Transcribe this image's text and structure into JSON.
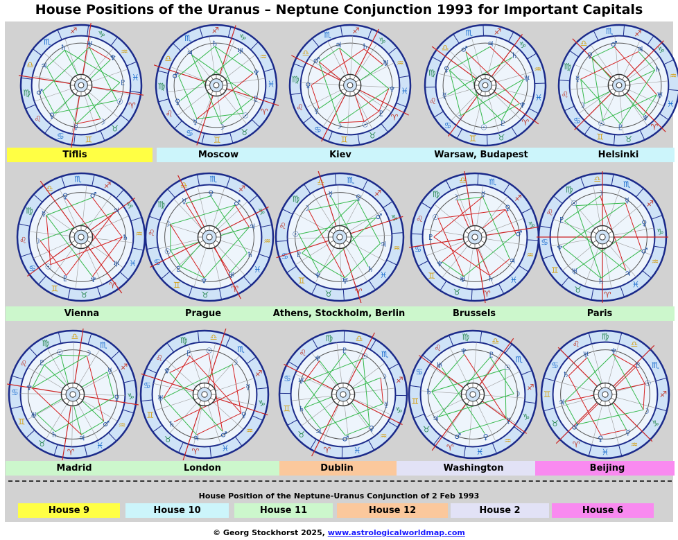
{
  "title": "House Positions of the Uranus – Neptune Conjunction 1993 for Important Capitals",
  "colors": {
    "house9": "#ffff44",
    "house10": "#ccf5fb",
    "house11": "#ccf7cc",
    "house12": "#fbc89c",
    "house2": "#e2e2f6",
    "house6": "#f98af0"
  },
  "rows": [
    {
      "labels": [
        {
          "text": "Tiflis",
          "color": "house9"
        },
        {
          "text": "Moscow",
          "color": "house10"
        },
        {
          "text": "Kiev",
          "color": "house10"
        },
        {
          "text": "Warsaw, Budapest",
          "color": "house10"
        },
        {
          "text": "Helsinki",
          "color": "house10"
        }
      ]
    },
    {
      "labels": [
        {
          "text": "Vienna",
          "color": "house11"
        },
        {
          "text": "Prague",
          "color": "house11"
        },
        {
          "text": "Athens, Stockholm, Berlin",
          "color": "house11"
        },
        {
          "text": "Brussels",
          "color": "house11"
        },
        {
          "text": "Paris",
          "color": "house11"
        }
      ]
    },
    {
      "labels": [
        {
          "text": "Madrid",
          "color": "house11"
        },
        {
          "text": "London",
          "color": "house11"
        },
        {
          "text": "Dublin",
          "color": "house12"
        },
        {
          "text": "Washington",
          "color": "house2"
        },
        {
          "text": "Beijing",
          "color": "house6"
        }
      ]
    }
  ],
  "legend": {
    "title": "House Position of the Neptune-Uranus Conjunction of 2 Feb 1993",
    "items": [
      {
        "text": "House 9",
        "color": "house9"
      },
      {
        "text": "House 10",
        "color": "house10"
      },
      {
        "text": "House 11",
        "color": "house11"
      },
      {
        "text": "House 12",
        "color": "house12"
      },
      {
        "text": "House 2",
        "color": "house2"
      },
      {
        "text": "House 6",
        "color": "house6"
      }
    ]
  },
  "footer": {
    "copyright": "© Georg Stockhorst 2025,",
    "link": "www.astrologicalworldmap.com"
  }
}
